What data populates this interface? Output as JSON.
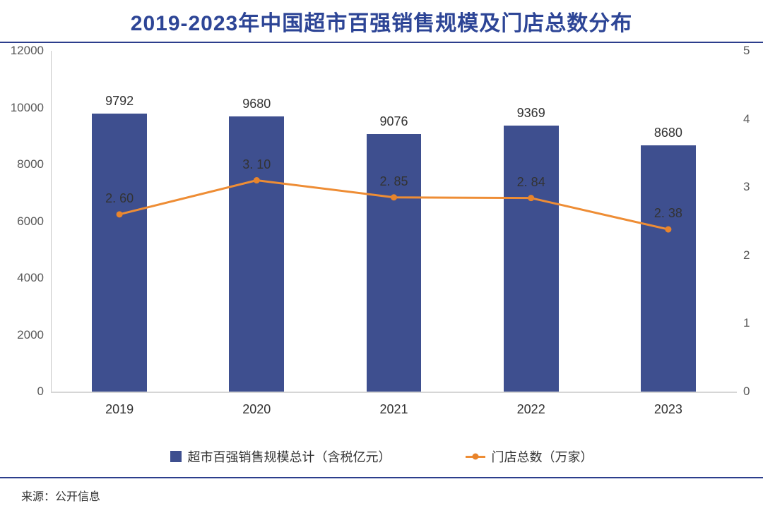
{
  "title": "2019-2023年中国超市百强销售规模及门店总数分布",
  "source": "来源：公开信息",
  "colors": {
    "title": "#2D4596",
    "separator": "#2C3E8C",
    "bar": "#3E4F8F",
    "line": "#EE8D35",
    "marker": "#E8842B",
    "axis_text": "#595959",
    "label_text": "#333333",
    "axis_line": "#c9c9c9"
  },
  "legend": {
    "items": [
      {
        "label": "超市百强销售规模总计（含税亿元）",
        "swatch": "bar"
      },
      {
        "label": "门店总数（万家）",
        "swatch": "line"
      }
    ]
  },
  "chart_data": {
    "type": "bar+line combo",
    "title": "2019-2023年中国超市百强销售规模及门店总数分布",
    "categories": [
      "2019",
      "2020",
      "2021",
      "2022",
      "2023"
    ],
    "series": [
      {
        "name": "超市百强销售规模总计（含税亿元）",
        "type": "bar",
        "axis": "left",
        "values": [
          9792,
          9680,
          9076,
          9369,
          8680
        ],
        "labels": [
          "9792",
          "9680",
          "9076",
          "9369",
          "8680"
        ]
      },
      {
        "name": "门店总数（万家）",
        "type": "line",
        "axis": "right",
        "values": [
          2.6,
          3.1,
          2.85,
          2.84,
          2.38
        ],
        "labels": [
          "2. 60",
          "3. 10",
          "2. 85",
          "2. 84",
          "2. 38"
        ]
      }
    ],
    "left_axis": {
      "min": 0,
      "max": 12000,
      "ticks": [
        0,
        2000,
        4000,
        6000,
        8000,
        10000,
        12000
      ]
    },
    "right_axis": {
      "min": 0,
      "max": 5,
      "ticks": [
        0,
        1,
        2,
        3,
        4,
        5
      ]
    },
    "grid": false,
    "legend_position": "bottom",
    "source": "来源：公开信息"
  }
}
